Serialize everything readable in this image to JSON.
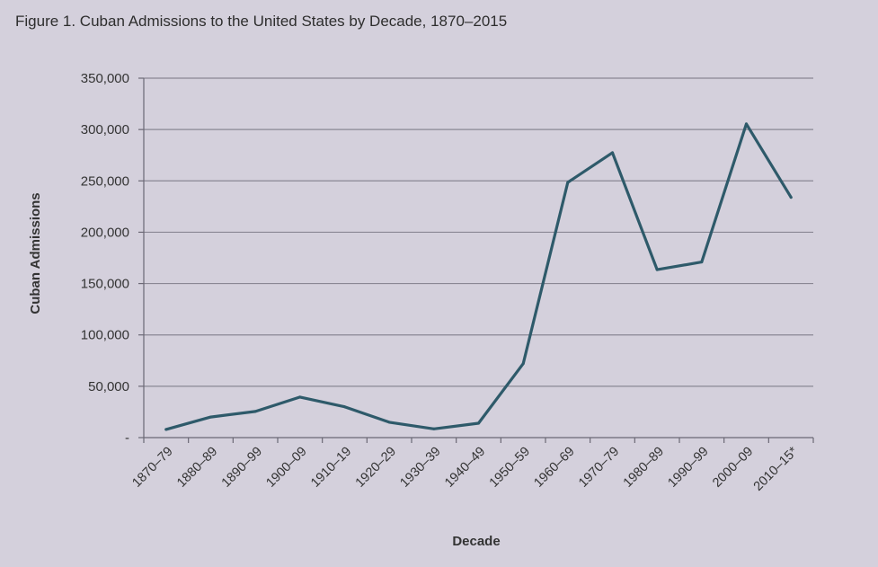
{
  "figure": {
    "title": "Figure 1. Cuban Admissions to the United States by Decade, 1870–2015"
  },
  "chart_data": {
    "type": "line",
    "title": "Figure 1. Cuban Admissions to the United States by Decade, 1870–2015",
    "xlabel": "Decade",
    "ylabel": "Cuban Admissions",
    "categories": [
      "1870–79",
      "1880–89",
      "1890–99",
      "1900–09",
      "1910–19",
      "1920–29",
      "1930–39",
      "1940–49",
      "1950–59",
      "1960–69",
      "1970–79",
      "1980–89",
      "1990–99",
      "2000–09",
      "2010–15*"
    ],
    "series": [
      {
        "name": "Cuban Admissions",
        "values": [
          8000,
          20000,
          25500,
          39500,
          30000,
          15000,
          8500,
          14000,
          72000,
          248500,
          277500,
          163500,
          171000,
          305500,
          234000
        ]
      }
    ],
    "ylim": [
      0,
      350000
    ],
    "yticks": [
      0,
      50000,
      100000,
      150000,
      200000,
      250000,
      300000,
      350000
    ],
    "ytick_labels": [
      "-",
      "50,000",
      "100,000",
      "150,000",
      "200,000",
      "250,000",
      "300,000",
      "350,000"
    ],
    "grid": true,
    "line_color": "#2e5a6a"
  }
}
